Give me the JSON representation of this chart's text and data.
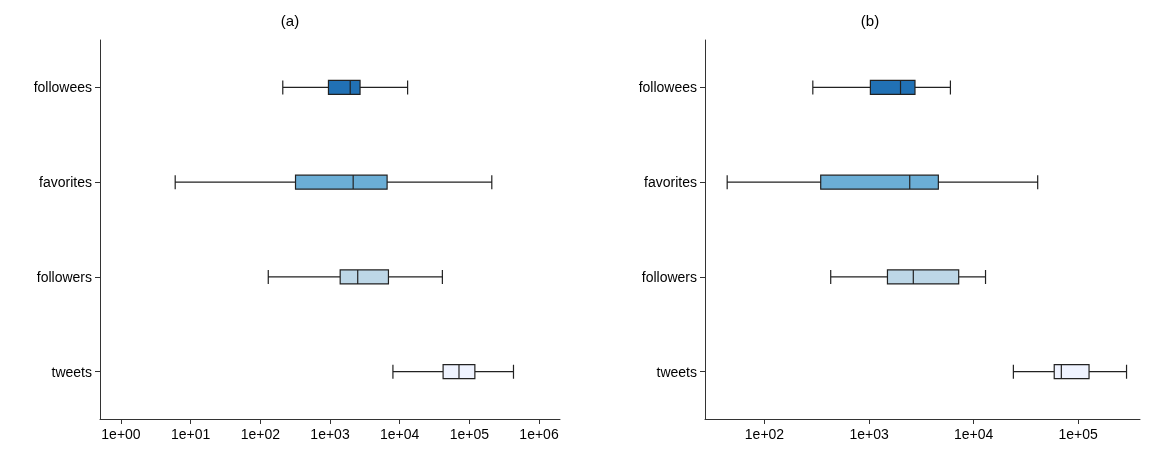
{
  "chart_data": [
    {
      "type": "box",
      "title": "(a)",
      "orientation": "horizontal",
      "log": "x",
      "grid": false,
      "categories": [
        "followees",
        "favorites",
        "followers",
        "tweets"
      ],
      "xlim": [
        0.5,
        2000000
      ],
      "xticks": [
        {
          "value": 1,
          "label": "1e+00"
        },
        {
          "value": 10,
          "label": "1e+01"
        },
        {
          "value": 100,
          "label": "1e+02"
        },
        {
          "value": 1000,
          "label": "1e+03"
        },
        {
          "value": 10000,
          "label": "1e+04"
        },
        {
          "value": 100000,
          "label": "1e+05"
        },
        {
          "value": 1000000,
          "label": "1e+06"
        }
      ],
      "series": [
        {
          "colors": [
            "#2171b5",
            "#6baed6",
            "#bdd7e7",
            "#eff3ff"
          ],
          "boxes": [
            {
              "low": 210,
              "q1": 950,
              "median": 1950,
              "q3": 2700,
              "high": 13000
            },
            {
              "low": 6,
              "q1": 320,
              "median": 2150,
              "q3": 6600,
              "high": 210000
            },
            {
              "low": 130,
              "q1": 1400,
              "median": 2500,
              "q3": 6900,
              "high": 41000
            },
            {
              "low": 8000,
              "q1": 42000,
              "median": 71000,
              "q3": 120000,
              "high": 430000
            }
          ]
        }
      ]
    },
    {
      "type": "box",
      "title": "(b)",
      "orientation": "horizontal",
      "log": "x",
      "grid": false,
      "categories": [
        "followees",
        "favorites",
        "followers",
        "tweets"
      ],
      "xlim": [
        27,
        390000
      ],
      "xticks": [
        {
          "value": 100,
          "label": "1e+02"
        },
        {
          "value": 1000,
          "label": "1e+03"
        },
        {
          "value": 10000,
          "label": "1e+04"
        },
        {
          "value": 100000,
          "label": "1e+05"
        }
      ],
      "series": [
        {
          "colors": [
            "#2171b5",
            "#6baed6",
            "#bdd7e7",
            "#eff3ff"
          ],
          "boxes": [
            {
              "low": 290,
              "q1": 1030,
              "median": 2000,
              "q3": 2750,
              "high": 6000
            },
            {
              "low": 44,
              "q1": 345,
              "median": 2450,
              "q3": 4600,
              "high": 41000
            },
            {
              "low": 430,
              "q1": 1500,
              "median": 2650,
              "q3": 7200,
              "high": 13000
            },
            {
              "low": 24000,
              "q1": 59000,
              "median": 69000,
              "q3": 127000,
              "high": 290000
            }
          ]
        }
      ]
    }
  ]
}
